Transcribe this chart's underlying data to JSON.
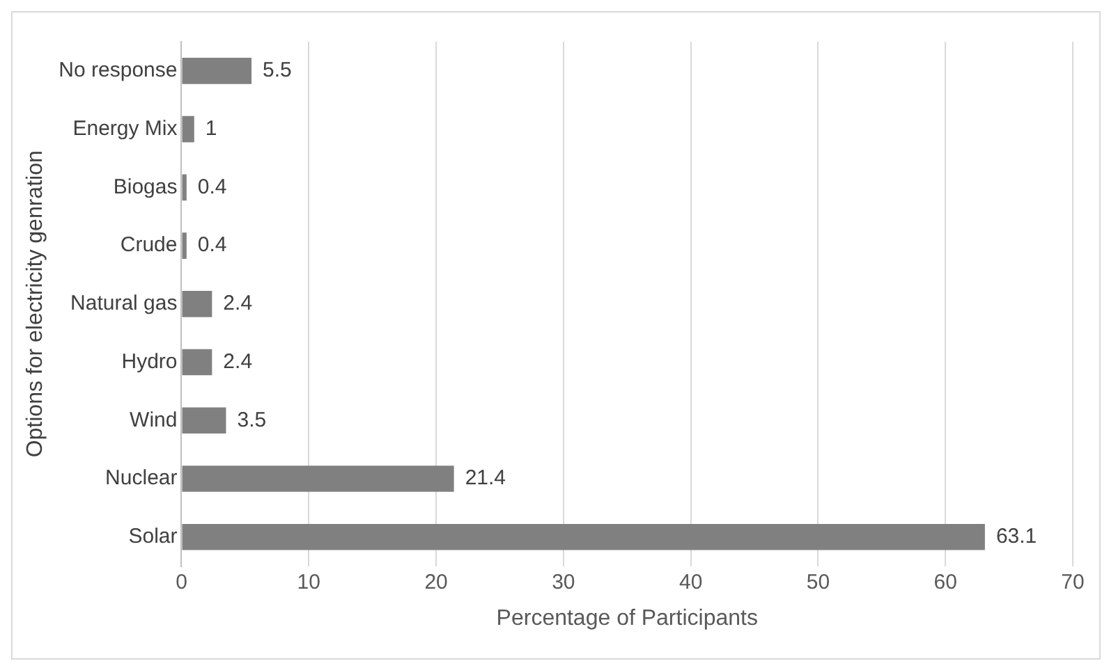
{
  "chart_data": {
    "type": "bar",
    "orientation": "horizontal",
    "xlabel": "Percentage of Participants",
    "ylabel": "Options for electricity genration",
    "categories": [
      "No response",
      "Energy Mix",
      "Biogas",
      "Crude",
      "Natural gas",
      "Hydro",
      "Wind",
      "Nuclear",
      "Solar"
    ],
    "values": [
      5.5,
      1,
      0.4,
      0.4,
      2.4,
      2.4,
      3.5,
      21.4,
      63.1
    ],
    "color": "#808080",
    "xlim": [
      0,
      70
    ],
    "xticks": [
      0,
      10,
      20,
      30,
      40,
      50,
      60,
      70
    ],
    "grid": "x",
    "data_labels": true,
    "legend": false
  }
}
